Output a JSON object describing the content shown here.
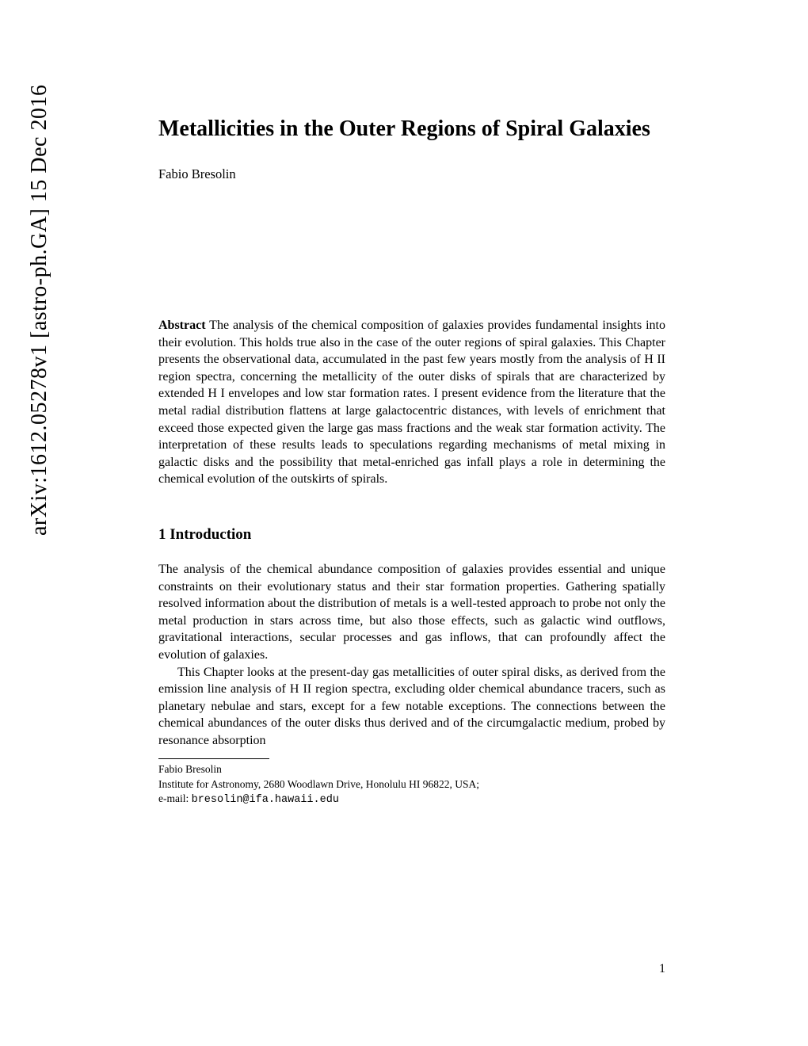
{
  "arxiv": {
    "identifier": "arXiv:1612.05278v1  [astro-ph.GA]  15 Dec 2016"
  },
  "paper": {
    "title": "Metallicities in the Outer Regions of Spiral Galaxies",
    "author": "Fabio Bresolin",
    "abstract_label": "Abstract",
    "abstract_text": " The analysis of the chemical composition of galaxies provides fundamental insights into their evolution. This holds true also in the case of the outer regions of spiral galaxies. This Chapter presents the observational data, accumulated in the past few years mostly from the analysis of H II region spectra, concerning the metallicity of the outer disks of spirals that are characterized by extended H I envelopes and low star formation rates. I present evidence from the literature that the metal radial distribution flattens at large galactocentric distances, with levels of enrichment that exceed those expected given the large gas mass fractions and the weak star formation activity. The interpretation of these results leads to speculations regarding mechanisms of metal mixing in galactic disks and the possibility that metal-enriched gas infall plays a role in determining the chemical evolution of the outskirts of spirals.",
    "section_number": "1",
    "section_title": "Introduction",
    "body_para_1": "The analysis of the chemical abundance composition of galaxies provides essential and unique constraints on their evolutionary status and their star formation properties. Gathering spatially resolved information about the distribution of metals is a well-tested approach to probe not only the metal production in stars across time, but also those effects, such as galactic wind outflows, gravitational interactions, secular processes and gas inflows, that can profoundly affect the evolution of galaxies.",
    "body_para_2": "This Chapter looks at the present-day gas metallicities of outer spiral disks, as derived from the emission line analysis of H II region spectra, excluding older chemical abundance tracers, such as planetary nebulae and stars, except for a few notable exceptions. The connections between the chemical abundances of the outer disks thus derived and of the circumgalactic medium, probed by resonance absorption",
    "footnote_author": "Fabio Bresolin",
    "footnote_affiliation": "Institute for Astronomy, 2680 Woodlawn Drive, Honolulu HI 96822, USA;",
    "footnote_email_label": "e-mail: ",
    "footnote_email": "bresolin@ifa.hawaii.edu",
    "page_number": "1"
  },
  "style": {
    "background_color": "#ffffff",
    "text_color": "#000000",
    "title_fontsize": 28,
    "author_fontsize": 16.5,
    "body_fontsize": 16,
    "section_fontsize": 19,
    "footnote_fontsize": 13.5,
    "arxiv_fontsize": 28
  }
}
